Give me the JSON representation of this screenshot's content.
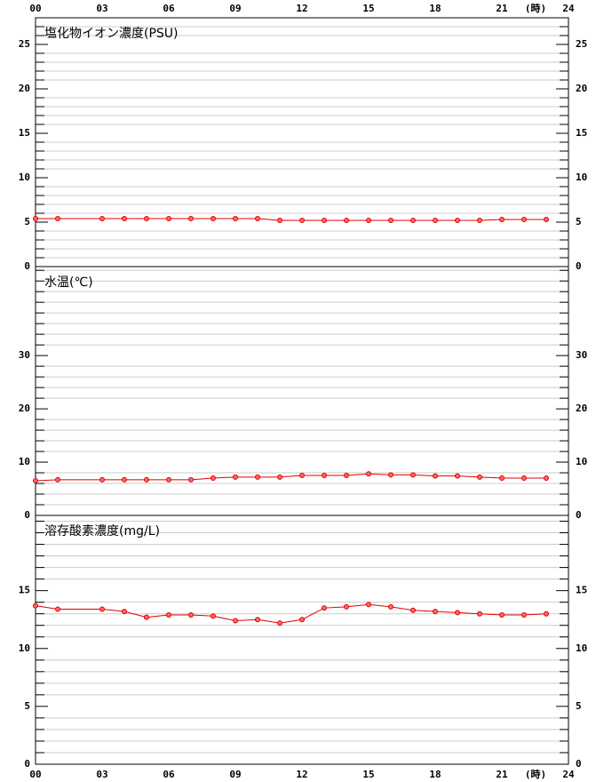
{
  "chart_data": [
    {
      "type": "line",
      "title": "塩化物イオン濃度(PSU)",
      "xlabel": "(時)",
      "x": [
        0,
        1,
        3,
        4,
        5,
        6,
        7,
        8,
        9,
        10,
        11,
        12,
        13,
        14,
        15,
        16,
        17,
        18,
        19,
        20,
        21,
        22,
        23
      ],
      "xlim": [
        0,
        24
      ],
      "xticks": [
        {
          "value": 0,
          "label": "00"
        },
        {
          "value": 3,
          "label": "03"
        },
        {
          "value": 6,
          "label": "06"
        },
        {
          "value": 9,
          "label": "09"
        },
        12,
        15,
        18,
        21,
        24
      ],
      "ylim": [
        0,
        28
      ],
      "yticks": [
        0,
        5,
        10,
        15,
        20,
        25
      ],
      "minor_step": 1,
      "grid": true,
      "series": [
        {
          "color": "#e00000",
          "values": [
            5.4,
            5.4,
            5.4,
            5.4,
            5.4,
            5.4,
            5.4,
            5.4,
            5.4,
            5.4,
            5.2,
            5.2,
            5.2,
            5.2,
            5.2,
            5.2,
            5.2,
            5.2,
            5.2,
            5.2,
            5.3,
            5.3,
            5.3
          ]
        }
      ]
    },
    {
      "type": "line",
      "title": "水温(℃)",
      "x": [
        0,
        1,
        3,
        4,
        5,
        6,
        7,
        8,
        9,
        10,
        11,
        12,
        13,
        14,
        15,
        16,
        17,
        18,
        19,
        20,
        21,
        22,
        23
      ],
      "xlim": [
        0,
        24
      ],
      "ylim": [
        0,
        46.7
      ],
      "yticks": [
        0,
        10,
        20,
        30
      ],
      "minor_step": 2,
      "grid": true,
      "series": [
        {
          "color": "#e00000",
          "values": [
            6.5,
            6.7,
            6.7,
            6.7,
            6.7,
            6.7,
            6.7,
            7.0,
            7.2,
            7.2,
            7.2,
            7.5,
            7.5,
            7.5,
            7.8,
            7.6,
            7.6,
            7.4,
            7.4,
            7.2,
            7.0,
            7.0,
            7.0
          ]
        }
      ]
    },
    {
      "type": "line",
      "title": "溶存酸素濃度(mg/L)",
      "xlabel": "(時)",
      "x": [
        0,
        1,
        3,
        4,
        5,
        6,
        7,
        8,
        9,
        10,
        11,
        12,
        13,
        14,
        15,
        16,
        17,
        18,
        19,
        20,
        21,
        22,
        23
      ],
      "xlim": [
        0,
        24
      ],
      "xticks": [
        {
          "value": 0,
          "label": "00"
        },
        {
          "value": 3,
          "label": "03"
        },
        {
          "value": 6,
          "label": "06"
        },
        {
          "value": 9,
          "label": "09"
        },
        12,
        15,
        18,
        21,
        24
      ],
      "ylim": [
        0,
        21.5
      ],
      "yticks": [
        0,
        5,
        10,
        15
      ],
      "minor_step": 1,
      "grid": true,
      "series": [
        {
          "color": "#e00000",
          "values": [
            13.7,
            13.4,
            13.4,
            13.2,
            12.7,
            12.9,
            12.9,
            12.8,
            12.4,
            12.5,
            12.2,
            12.5,
            13.5,
            13.6,
            13.8,
            13.6,
            13.3,
            13.2,
            13.1,
            13.0,
            12.9,
            12.9,
            13.0
          ]
        }
      ]
    }
  ]
}
